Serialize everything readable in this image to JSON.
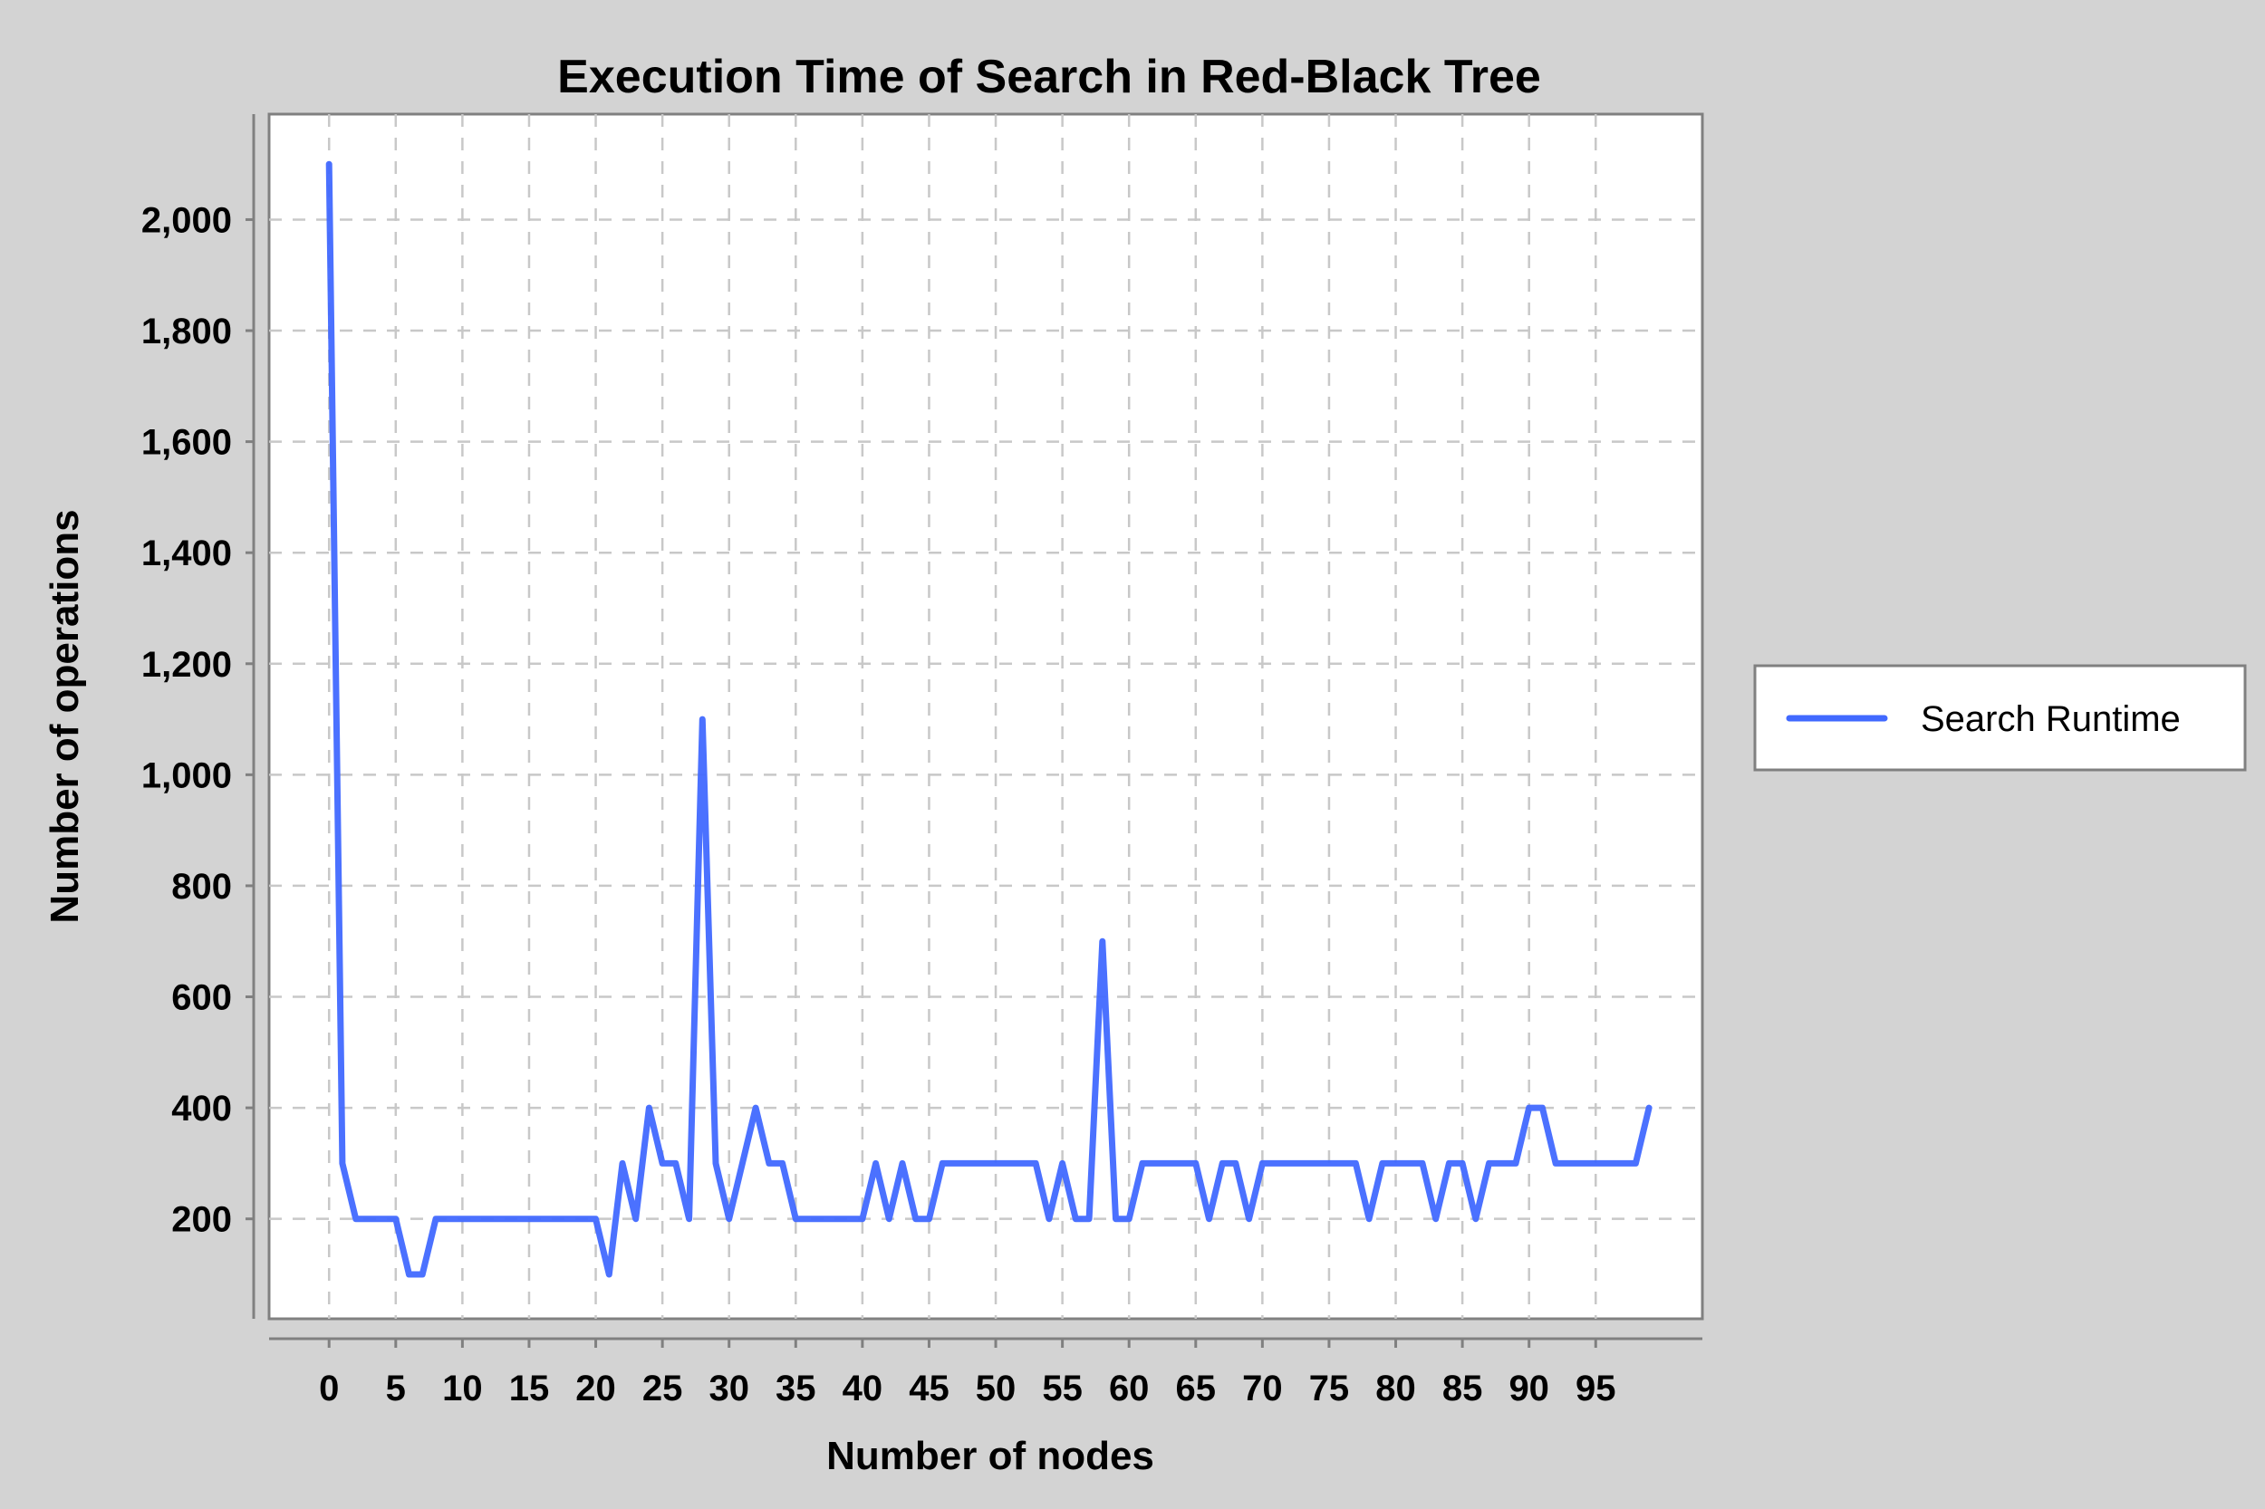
{
  "chart_data": {
    "type": "line",
    "title": "Execution Time of Search in Red-Black Tree",
    "xlabel": "Number of nodes",
    "ylabel": "Number of operations",
    "xlim": [
      -4.5,
      103
    ],
    "ylim": [
      20,
      2190
    ],
    "xticks": [
      0,
      5,
      10,
      15,
      20,
      25,
      30,
      35,
      40,
      45,
      50,
      55,
      60,
      65,
      70,
      75,
      80,
      85,
      90,
      95
    ],
    "xtick_labels": [
      "0",
      "5",
      "10",
      "15",
      "20",
      "25",
      "30",
      "35",
      "40",
      "45",
      "50",
      "55",
      "60",
      "65",
      "70",
      "75",
      "80",
      "85",
      "90",
      "95"
    ],
    "yticks": [
      200,
      400,
      600,
      800,
      1000,
      1200,
      1400,
      1600,
      1800,
      2000
    ],
    "ytick_labels": [
      "200",
      "400",
      "600",
      "800",
      "1,000",
      "1,200",
      "1,400",
      "1,600",
      "1,800",
      "2,000"
    ],
    "grid": true,
    "legend_position": "right",
    "colors": {
      "background": "#d3d3d3",
      "plot_background": "#ffffff",
      "grid": "#c8c8c8",
      "frame": "#808080",
      "series": "#4169ff"
    },
    "series": [
      {
        "name": "Search Runtime",
        "x": [
          0,
          1,
          2,
          3,
          4,
          5,
          6,
          7,
          8,
          9,
          10,
          11,
          12,
          13,
          14,
          15,
          16,
          17,
          18,
          19,
          20,
          21,
          22,
          23,
          24,
          25,
          26,
          27,
          28,
          29,
          30,
          31,
          32,
          33,
          34,
          35,
          36,
          37,
          38,
          39,
          40,
          41,
          42,
          43,
          44,
          45,
          46,
          47,
          48,
          49,
          50,
          51,
          52,
          53,
          54,
          55,
          56,
          57,
          58,
          59,
          60,
          61,
          62,
          63,
          64,
          65,
          66,
          67,
          68,
          69,
          70,
          71,
          72,
          73,
          74,
          75,
          76,
          77,
          78,
          79,
          80,
          81,
          82,
          83,
          84,
          85,
          86,
          87,
          88,
          89,
          90,
          91,
          92,
          93,
          94,
          95,
          96,
          97,
          98,
          99
        ],
        "values": [
          2100,
          300,
          200,
          200,
          200,
          200,
          100,
          100,
          200,
          200,
          200,
          200,
          200,
          200,
          200,
          200,
          200,
          200,
          200,
          200,
          200,
          100,
          300,
          200,
          400,
          300,
          300,
          200,
          1100,
          300,
          200,
          300,
          400,
          300,
          300,
          200,
          200,
          200,
          200,
          200,
          200,
          300,
          200,
          300,
          200,
          200,
          300,
          300,
          300,
          300,
          300,
          300,
          300,
          300,
          200,
          300,
          200,
          200,
          700,
          200,
          200,
          300,
          300,
          300,
          300,
          300,
          200,
          300,
          300,
          200,
          300,
          300,
          300,
          300,
          300,
          300,
          300,
          300,
          200,
          300,
          300,
          300,
          300,
          200,
          300,
          300,
          200,
          300,
          300,
          300,
          400,
          400,
          300,
          300,
          300,
          300,
          300,
          300,
          300,
          400
        ]
      }
    ]
  }
}
